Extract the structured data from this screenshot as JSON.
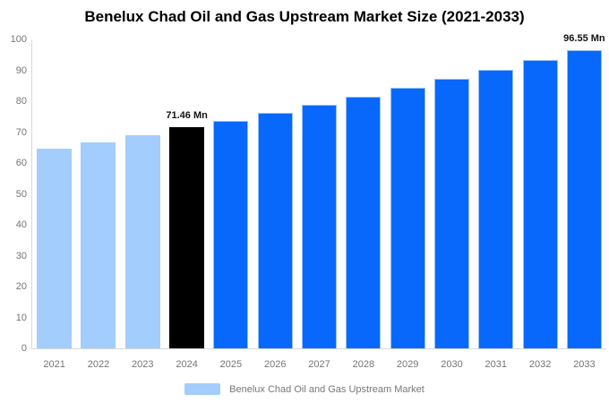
{
  "title": "Benelux Chad Oil and Gas Upstream Market Size (2021-2033)",
  "legend": {
    "label": "Benelux Chad Oil and Gas Upstream Market",
    "swatch_color": "#A3CDFC"
  },
  "chart_data": {
    "type": "bar",
    "title": "Benelux Chad Oil and Gas Upstream Market Size (2021-2033)",
    "categories": [
      "2021",
      "2022",
      "2023",
      "2024",
      "2025",
      "2026",
      "2027",
      "2028",
      "2029",
      "2030",
      "2031",
      "2032",
      "2033"
    ],
    "values": [
      64.5,
      66.7,
      69.0,
      71.46,
      73.7,
      76.2,
      78.8,
      81.5,
      84.3,
      87.2,
      90.2,
      93.3,
      96.55
    ],
    "value_unit": "Mn",
    "xlabel": "",
    "ylabel": "",
    "ylim": [
      0,
      100
    ],
    "yticks": [
      0,
      10,
      20,
      30,
      40,
      50,
      60,
      70,
      80,
      90,
      100
    ],
    "grid": false,
    "legend_position": "bottom",
    "bar_color_roles": [
      "light",
      "light",
      "light",
      "dark",
      "primary",
      "primary",
      "primary",
      "primary",
      "primary",
      "primary",
      "primary",
      "primary",
      "primary"
    ],
    "palette": {
      "light": "#A3CDFC",
      "dark": "#000000",
      "primary": "#0768FB"
    },
    "annotations": [
      {
        "index": 3,
        "text": "71.46 Mn"
      },
      {
        "index": 12,
        "text": "96.55 Mn"
      }
    ],
    "axis_line_color": "#D9D9D9",
    "tick_label_color": "#757575"
  }
}
